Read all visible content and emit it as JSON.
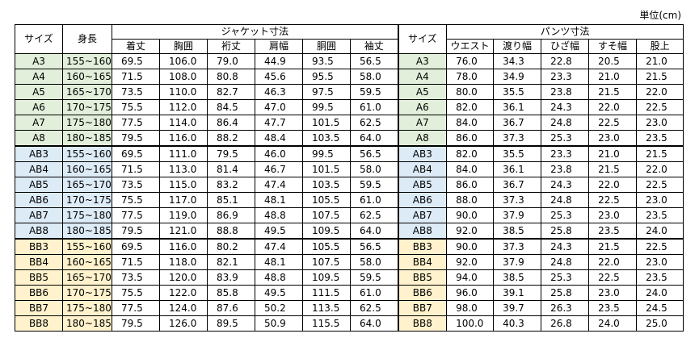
{
  "unit": "単位(cm)",
  "header": {
    "size": "サイズ",
    "height": "身長",
    "jacket": "ジャケット寸法",
    "jacket_cols": [
      "着丈",
      "胸囲",
      "裄丈",
      "肩幅",
      "胴囲",
      "袖丈"
    ],
    "size2": "サイズ",
    "pants": "パンツ寸法",
    "pants_cols": [
      "ウエスト",
      "渡り幅",
      "ひざ幅",
      "すそ幅",
      "股上"
    ]
  },
  "rows": [
    [
      "A3",
      "155~160",
      "69.5",
      "106.0",
      "79.0",
      "44.9",
      "93.5",
      "56.5",
      "A3",
      "76.0",
      "34.3",
      "22.8",
      "20.5",
      "21.0"
    ],
    [
      "A4",
      "160~165",
      "71.5",
      "108.0",
      "80.8",
      "45.6",
      "95.5",
      "58.0",
      "A4",
      "78.0",
      "34.9",
      "23.3",
      "21.0",
      "21.5"
    ],
    [
      "A5",
      "165~170",
      "73.5",
      "110.0",
      "82.7",
      "46.3",
      "97.5",
      "59.5",
      "A5",
      "80.0",
      "35.5",
      "23.8",
      "21.5",
      "22.0"
    ],
    [
      "A6",
      "170~175",
      "75.5",
      "112.0",
      "84.5",
      "47.0",
      "99.5",
      "61.0",
      "A6",
      "82.0",
      "36.1",
      "24.3",
      "22.0",
      "22.5"
    ],
    [
      "A7",
      "175~180",
      "77.5",
      "114.0",
      "86.4",
      "47.7",
      "101.5",
      "62.5",
      "A7",
      "84.0",
      "36.7",
      "24.8",
      "22.5",
      "23.0"
    ],
    [
      "A8",
      "180~185",
      "79.5",
      "116.0",
      "88.2",
      "48.4",
      "103.5",
      "64.0",
      "A8",
      "86.0",
      "37.3",
      "25.3",
      "23.0",
      "23.5"
    ],
    [
      "AB3",
      "155~160",
      "69.5",
      "111.0",
      "79.5",
      "46.0",
      "99.5",
      "56.5",
      "AB3",
      "82.0",
      "35.5",
      "23.3",
      "21.0",
      "21.5"
    ],
    [
      "AB4",
      "160~165",
      "71.5",
      "113.0",
      "81.4",
      "46.7",
      "101.5",
      "58.0",
      "AB4",
      "84.0",
      "36.1",
      "23.8",
      "21.5",
      "22.0"
    ],
    [
      "AB5",
      "165~170",
      "73.5",
      "115.0",
      "83.2",
      "47.4",
      "103.5",
      "59.5",
      "AB5",
      "86.0",
      "36.7",
      "24.3",
      "22.0",
      "22.5"
    ],
    [
      "AB6",
      "170~175",
      "75.5",
      "117.0",
      "85.1",
      "48.1",
      "105.5",
      "61.0",
      "AB6",
      "88.0",
      "37.3",
      "24.8",
      "22.5",
      "23.0"
    ],
    [
      "AB7",
      "175~180",
      "77.5",
      "119.0",
      "86.9",
      "48.8",
      "107.5",
      "62.5",
      "AB7",
      "90.0",
      "37.9",
      "25.3",
      "23.0",
      "23.5"
    ],
    [
      "AB8",
      "180~185",
      "79.5",
      "121.0",
      "88.8",
      "49.5",
      "109.5",
      "64.0",
      "AB8",
      "92.0",
      "38.5",
      "25.8",
      "23.5",
      "24.0"
    ],
    [
      "BB3",
      "155~160",
      "69.5",
      "116.0",
      "80.2",
      "47.4",
      "105.5",
      "56.5",
      "BB3",
      "90.0",
      "37.3",
      "24.3",
      "21.5",
      "22.5"
    ],
    [
      "BB4",
      "160~165",
      "71.5",
      "118.0",
      "82.1",
      "48.1",
      "107.5",
      "58.0",
      "BB4",
      "92.0",
      "37.9",
      "24.8",
      "22.0",
      "23.0"
    ],
    [
      "BB5",
      "165~170",
      "73.5",
      "120.0",
      "83.9",
      "48.8",
      "109.5",
      "59.5",
      "BB5",
      "94.0",
      "38.5",
      "25.3",
      "22.5",
      "23.5"
    ],
    [
      "BB6",
      "170~175",
      "75.5",
      "122.0",
      "85.8",
      "49.5",
      "111.5",
      "61.0",
      "BB6",
      "96.0",
      "39.1",
      "25.8",
      "23.0",
      "24.0"
    ],
    [
      "BB7",
      "175~180",
      "77.5",
      "124.0",
      "87.6",
      "50.2",
      "113.5",
      "62.5",
      "BB7",
      "98.0",
      "39.7",
      "26.3",
      "23.5",
      "24.5"
    ],
    [
      "BB8",
      "180~185",
      "79.5",
      "126.0",
      "89.5",
      "50.9",
      "115.5",
      "64.0",
      "BB8",
      "100.0",
      "40.3",
      "26.8",
      "24.0",
      "25.0"
    ]
  ]
}
